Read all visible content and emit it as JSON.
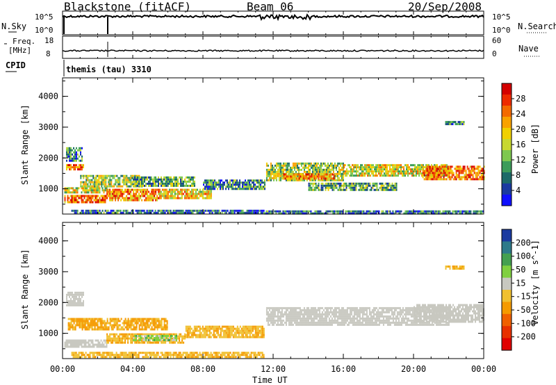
{
  "header": {
    "station": "Blackstone (fitACF)",
    "beam": "Beam 06",
    "date": "20/Sep/2008"
  },
  "strip_top": {
    "left_label": "N.Sky",
    "left_ticks": [
      "10^5",
      "10^0"
    ],
    "right_ticks": [
      "10^5",
      "10^0"
    ],
    "right_label": "N.Search"
  },
  "strip_freq": {
    "left_label_1": "Freq.",
    "left_label_2": "[MHz]",
    "left_ticks": [
      "18",
      "8"
    ],
    "right_ticks": [
      "60",
      "0"
    ],
    "right_label": "Nave"
  },
  "cpid": {
    "label": "CPID",
    "value": "themis (tau) 3310"
  },
  "power_scale": {
    "label": "Power [dB]",
    "ticks": [
      "28",
      "24",
      "20",
      "16",
      "12",
      "8",
      "4"
    ],
    "colors": [
      "#d40000",
      "#ee2a00",
      "#f46a00",
      "#f9a200",
      "#f0d000",
      "#c8d830",
      "#7ec850",
      "#3c9c5a",
      "#1c6a68",
      "#1a3aa0",
      "#1010ff"
    ]
  },
  "velocity_scale": {
    "label": "Velocity [m s^-1]",
    "ticks": [
      "200",
      "100",
      "50",
      "15",
      "-15",
      "-50",
      "-100",
      "-200"
    ],
    "colors": [
      "#1a3aa0",
      "#2e7a8a",
      "#44a050",
      "#80d040",
      "#c8c8c0",
      "#f0c030",
      "#f59a00",
      "#f06000",
      "#e83000",
      "#e00000"
    ]
  },
  "chart_data": {
    "type": "heatmap",
    "xlabel": "Time UT",
    "ylabel": "Slant Range [km]",
    "xticks": [
      "00:00",
      "04:00",
      "08:00",
      "12:00",
      "16:00",
      "20:00",
      "00:00"
    ],
    "yticks": [
      "1000",
      "2000",
      "3000",
      "4000"
    ],
    "xlim_hours": [
      0,
      24
    ],
    "ylim_km": [
      180,
      4600
    ],
    "series": [
      {
        "name": "Power [dB]",
        "bands": [
          {
            "t": [
              0.2,
              1.1
            ],
            "r": [
              1900,
              2350
            ],
            "value": 8
          },
          {
            "t": [
              0.2,
              1.2
            ],
            "r": [
              1600,
              1800
            ],
            "value": 24
          },
          {
            "t": [
              0.1,
              2.5
            ],
            "r": [
              550,
              800
            ],
            "value": 24
          },
          {
            "t": [
              0.1,
              2.5
            ],
            "r": [
              850,
              1050
            ],
            "value": 16
          },
          {
            "t": [
              1.0,
              4.5
            ],
            "r": [
              1100,
              1450
            ],
            "value": 14
          },
          {
            "t": [
              2.5,
              5.5
            ],
            "r": [
              650,
              1000
            ],
            "value": 22
          },
          {
            "t": [
              4.0,
              7.5
            ],
            "r": [
              1100,
              1400
            ],
            "value": 10
          },
          {
            "t": [
              5.5,
              8.5
            ],
            "r": [
              700,
              1000
            ],
            "value": 18
          },
          {
            "t": [
              8.0,
              11.5
            ],
            "r": [
              1000,
              1300
            ],
            "value": 8
          },
          {
            "t": [
              0.5,
              11.5
            ],
            "r": [
              220,
              320
            ],
            "value": 6
          },
          {
            "t": [
              11.6,
              16.0
            ],
            "r": [
              1250,
              1850
            ],
            "value": 14
          },
          {
            "t": [
              12.5,
              15.5
            ],
            "r": [
              1350,
              1500
            ],
            "value": 22
          },
          {
            "t": [
              14.0,
              19.0
            ],
            "r": [
              950,
              1200
            ],
            "value": 10
          },
          {
            "t": [
              16.0,
              22.0
            ],
            "r": [
              1400,
              1800
            ],
            "value": 16
          },
          {
            "t": [
              20.5,
              24.0
            ],
            "r": [
              1300,
              1750
            ],
            "value": 24
          },
          {
            "t": [
              11.5,
              24.0
            ],
            "r": [
              230,
              300
            ],
            "value": 6
          },
          {
            "t": [
              21.8,
              22.9
            ],
            "r": [
              3100,
              3200
            ],
            "value": 6
          }
        ]
      },
      {
        "name": "Velocity [m s^-1]",
        "bands": [
          {
            "t": [
              0.2,
              1.2
            ],
            "r": [
              1900,
              2350
            ],
            "value": 0
          },
          {
            "t": [
              0.1,
              2.5
            ],
            "r": [
              550,
              800
            ],
            "value": 0
          },
          {
            "t": [
              0.3,
              6.0
            ],
            "r": [
              1100,
              1500
            ],
            "value": -40
          },
          {
            "t": [
              2.5,
              7.0
            ],
            "r": [
              700,
              1000
            ],
            "value": -30
          },
          {
            "t": [
              4.0,
              6.5
            ],
            "r": [
              800,
              950
            ],
            "value": 20
          },
          {
            "t": [
              7.0,
              11.5
            ],
            "r": [
              900,
              1250
            ],
            "value": -30
          },
          {
            "t": [
              11.6,
              22.0
            ],
            "r": [
              1250,
              1850
            ],
            "value": 0
          },
          {
            "t": [
              20.0,
              24.0
            ],
            "r": [
              1400,
              1950
            ],
            "value": 0
          },
          {
            "t": [
              0.5,
              11.5
            ],
            "r": [
              220,
              400
            ],
            "value": -30
          },
          {
            "t": [
              21.8,
              22.9
            ],
            "r": [
              3100,
              3200
            ],
            "value": -30
          }
        ]
      }
    ]
  }
}
